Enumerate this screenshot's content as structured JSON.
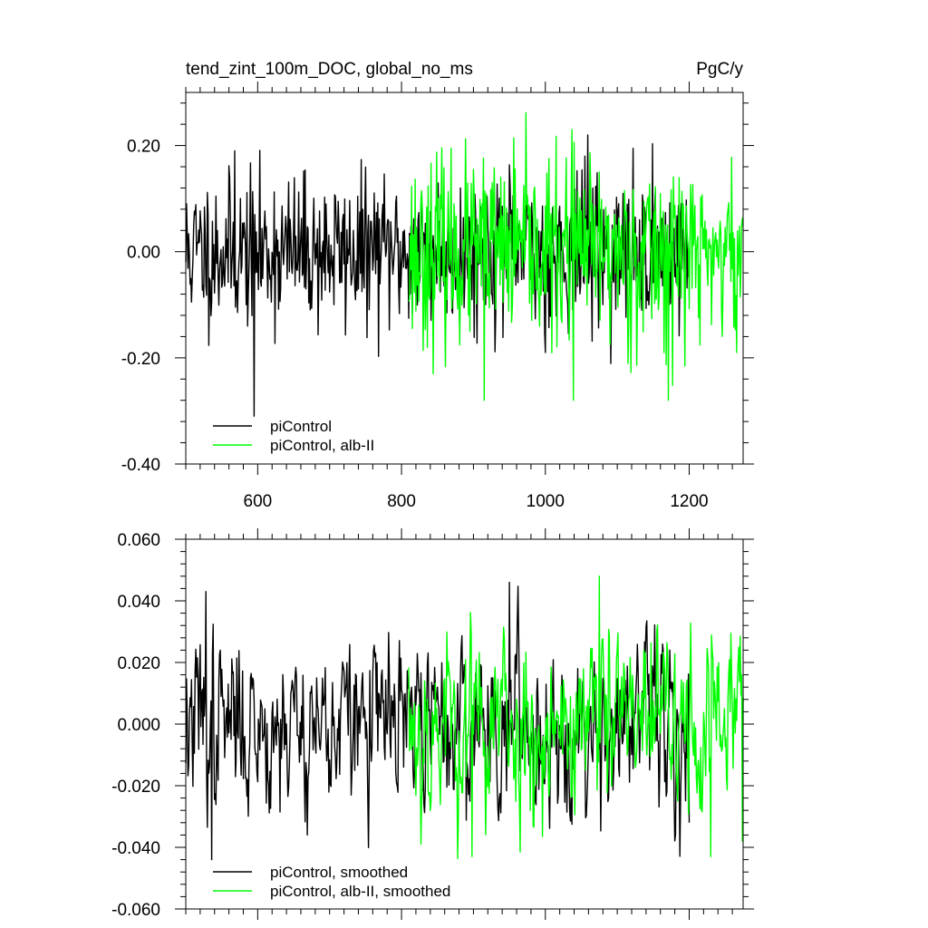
{
  "chart_data": [
    {
      "type": "line",
      "title": "tend_zint_100m_DOC, global_no_ms",
      "units": "PgC/y",
      "xlabel": "",
      "ylabel": "",
      "xlim": [
        500,
        1275
      ],
      "ylim": [
        -0.4,
        0.3
      ],
      "xticks": [
        600,
        800,
        1000,
        1200
      ],
      "xtick_labels": [
        "600",
        "800",
        "1000",
        "1200"
      ],
      "yticks": [
        -0.4,
        -0.2,
        0.0,
        0.2
      ],
      "ytick_labels": [
        "-0.40",
        "-0.20",
        "0.00",
        "0.20"
      ],
      "grid": false,
      "legend_position": "bottom-left",
      "series": [
        {
          "name": "piControl",
          "color": "#000000",
          "x_range": [
            500,
            1200
          ],
          "amplitude_y": 0.07,
          "extremes": [
            [
              568,
              0.19
            ],
            [
              595,
              -0.31
            ],
            [
              1059,
              0.22
            ],
            [
              1000,
              -0.19
            ]
          ]
        },
        {
          "name": "piControl, alb-II",
          "color": "#00ff00",
          "x_range": [
            810,
            1275
          ],
          "amplitude_y": 0.085,
          "extremes": [
            [
              1037,
              0.23
            ],
            [
              915,
              -0.28
            ],
            [
              1039,
              -0.28
            ],
            [
              1171,
              -0.28
            ],
            [
              1266,
              -0.19
            ]
          ]
        }
      ]
    },
    {
      "type": "line",
      "title": "",
      "xlabel": "",
      "ylabel": "",
      "xlim": [
        500,
        1275
      ],
      "ylim": [
        -0.06,
        0.06
      ],
      "xticks": [
        600,
        800,
        1000,
        1200
      ],
      "xtick_labels": [],
      "yticks": [
        -0.06,
        -0.04,
        -0.02,
        0.0,
        0.02,
        0.04,
        0.06
      ],
      "ytick_labels": [
        "-0.060",
        "-0.040",
        "-0.020",
        "0.000",
        "0.020",
        "0.040",
        "0.060"
      ],
      "grid": false,
      "legend_position": "bottom-left",
      "series": [
        {
          "name": "piControl, smoothed",
          "color": "#000000",
          "x_range": [
            500,
            1200
          ],
          "amplitude_y": 0.016,
          "extremes": [
            [
              528,
              0.043
            ],
            [
              536,
              -0.044
            ],
            [
              950,
              0.046
            ],
            [
              1200,
              -0.032
            ]
          ]
        },
        {
          "name": "piControl, alb-II, smoothed",
          "color": "#00ff00",
          "x_range": [
            810,
            1275
          ],
          "amplitude_y": 0.018,
          "extremes": [
            [
              1075,
              0.048
            ],
            [
              898,
              -0.043
            ],
            [
              1230,
              -0.043
            ],
            [
              1274,
              -0.038
            ]
          ]
        }
      ]
    }
  ]
}
